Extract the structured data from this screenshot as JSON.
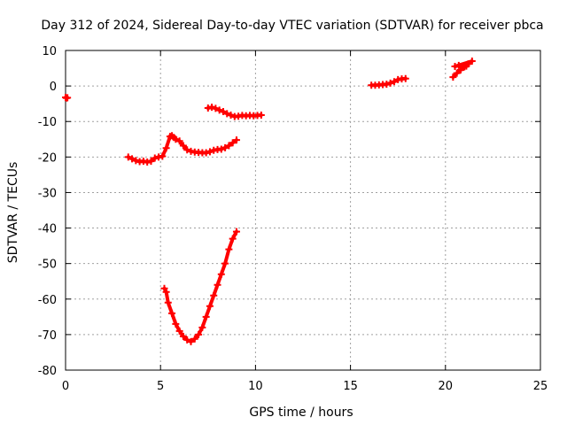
{
  "chart_data": {
    "type": "scatter",
    "title": "Day 312 of 2024, Sidereal Day-to-day VTEC variation (SDTVAR) for receiver pbca",
    "xlabel": "GPS time / hours",
    "ylabel": "SDTVAR / TECUs",
    "xlim": [
      0,
      25
    ],
    "ylim": [
      -80,
      10
    ],
    "xticks": [
      0,
      5,
      10,
      15,
      20,
      25
    ],
    "yticks": [
      10,
      0,
      -10,
      -20,
      -30,
      -40,
      -50,
      -60,
      -70,
      -80
    ],
    "grid": true,
    "legend": "none",
    "marker": "plus",
    "series_color": "#ff0000",
    "series": [
      {
        "points": [
          [
            0.0,
            -3.2
          ],
          [
            0.05,
            -3.4
          ],
          [
            0.1,
            -3.3
          ]
        ]
      },
      {
        "points": [
          [
            3.3,
            -20.0
          ],
          [
            3.5,
            -20.5
          ],
          [
            3.7,
            -21.0
          ],
          [
            3.9,
            -21.3
          ],
          [
            4.1,
            -21.2
          ],
          [
            4.3,
            -21.4
          ],
          [
            4.5,
            -21.2
          ],
          [
            4.7,
            -20.3
          ],
          [
            4.9,
            -20.0
          ],
          [
            5.1,
            -19.8
          ],
          [
            5.3,
            -17.5
          ],
          [
            5.5,
            -14.2
          ],
          [
            5.6,
            -14.0
          ],
          [
            5.7,
            -14.5
          ],
          [
            5.8,
            -15.0
          ],
          [
            6.0,
            -15.5
          ],
          [
            6.2,
            -16.8
          ],
          [
            6.4,
            -18.0
          ],
          [
            6.6,
            -18.4
          ],
          [
            6.8,
            -18.6
          ],
          [
            7.0,
            -18.7
          ],
          [
            7.2,
            -18.8
          ],
          [
            7.4,
            -18.8
          ],
          [
            7.6,
            -18.5
          ],
          [
            7.8,
            -18.1
          ],
          [
            8.0,
            -17.9
          ],
          [
            8.2,
            -17.8
          ],
          [
            8.4,
            -17.4
          ],
          [
            8.6,
            -16.8
          ],
          [
            8.8,
            -16.0
          ],
          [
            9.0,
            -15.2
          ]
        ]
      },
      {
        "points": [
          [
            7.5,
            -6.2
          ],
          [
            7.7,
            -6.0
          ],
          [
            7.9,
            -6.3
          ],
          [
            8.1,
            -6.8
          ],
          [
            8.3,
            -7.2
          ],
          [
            8.5,
            -7.8
          ],
          [
            8.7,
            -8.2
          ],
          [
            8.9,
            -8.6
          ],
          [
            9.1,
            -8.5
          ],
          [
            9.3,
            -8.3
          ],
          [
            9.5,
            -8.4
          ],
          [
            9.7,
            -8.3
          ],
          [
            9.9,
            -8.4
          ],
          [
            10.1,
            -8.3
          ],
          [
            10.3,
            -8.2
          ]
        ]
      },
      {
        "points": [
          [
            5.2,
            -57.0
          ],
          [
            5.3,
            -58.0
          ],
          [
            5.4,
            -61.0
          ],
          [
            5.6,
            -64.0
          ],
          [
            5.8,
            -67.0
          ],
          [
            6.0,
            -69.0
          ],
          [
            6.2,
            -70.5
          ],
          [
            6.4,
            -71.5
          ],
          [
            6.6,
            -72.0
          ],
          [
            6.8,
            -71.2
          ],
          [
            7.0,
            -70.0
          ],
          [
            7.2,
            -68.0
          ],
          [
            7.4,
            -65.0
          ],
          [
            7.6,
            -62.0
          ],
          [
            7.8,
            -59.0
          ],
          [
            8.0,
            -56.0
          ],
          [
            8.2,
            -53.0
          ],
          [
            8.4,
            -50.0
          ],
          [
            8.6,
            -46.0
          ],
          [
            8.8,
            -43.0
          ],
          [
            9.0,
            -41.0
          ]
        ]
      },
      {
        "points": [
          [
            16.1,
            0.2
          ],
          [
            16.3,
            0.2
          ],
          [
            16.5,
            0.3
          ],
          [
            16.7,
            0.4
          ],
          [
            16.9,
            0.5
          ],
          [
            17.1,
            0.8
          ],
          [
            17.3,
            1.2
          ],
          [
            17.5,
            1.8
          ],
          [
            17.7,
            2.0
          ],
          [
            17.9,
            2.1
          ]
        ]
      },
      {
        "points": [
          [
            20.4,
            2.5
          ],
          [
            20.6,
            3.6
          ],
          [
            20.8,
            4.5
          ],
          [
            21.0,
            5.4
          ],
          [
            21.2,
            6.2
          ],
          [
            21.4,
            7.0
          ],
          [
            20.5,
            5.5
          ],
          [
            20.7,
            5.8
          ],
          [
            20.9,
            5.2
          ],
          [
            21.1,
            5.6
          ]
        ]
      }
    ]
  }
}
